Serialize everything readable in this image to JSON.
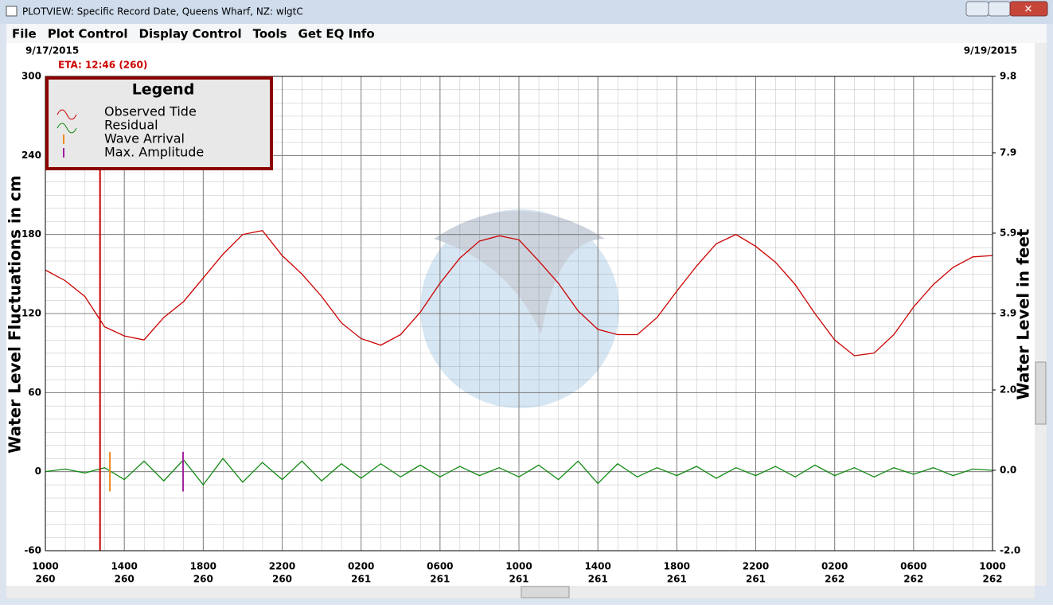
{
  "window": {
    "title": "PLOTVIEW: Specific Record Date, Queens Wharf, NZ: wlgtC",
    "menu": [
      "File",
      "Plot Control",
      "Display Control",
      "Tools",
      "Get EQ Info"
    ]
  },
  "chart_data": {
    "type": "line",
    "start_date_label": "9/17/2015",
    "end_date_label": "9/19/2015",
    "y_label": "Water Level Fluctuations in cm",
    "y2_label": "Water Level in feet",
    "legend_title": "Legend",
    "xlim": [
      0,
      48
    ],
    "xticks": [
      {
        "value": 0,
        "label": "1000"
      },
      {
        "value": 4,
        "label": "1400"
      },
      {
        "value": 8,
        "label": "1800"
      },
      {
        "value": 12,
        "label": "2200"
      },
      {
        "value": 16,
        "label": "0200"
      },
      {
        "value": 20,
        "label": "0600"
      },
      {
        "value": 24,
        "label": "1000"
      },
      {
        "value": 28,
        "label": "1400"
      },
      {
        "value": 32,
        "label": "1800"
      },
      {
        "value": 36,
        "label": "2200"
      },
      {
        "value": 40,
        "label": "0200"
      },
      {
        "value": 44,
        "label": "0600"
      },
      {
        "value": 48,
        "label": "1000"
      }
    ],
    "xtick_sublabels": [
      "260",
      "260",
      "260",
      "260",
      "261",
      "261",
      "261",
      "261",
      "261",
      "261",
      "262",
      "262",
      "262"
    ],
    "ylim": [
      -60,
      300
    ],
    "yticks": [
      300,
      240,
      180,
      120,
      60,
      0,
      -60
    ],
    "y2lim": [
      -2,
      9.8
    ],
    "y2ticks": [
      9.8,
      7.9,
      5.9,
      3.9,
      {
        "value": 2,
        "label": "2.0"
      },
      {
        "value": 0,
        "label": "0.0"
      },
      {
        "value": -2,
        "label": "-2.0"
      }
    ],
    "grid": true,
    "x": [
      0,
      1,
      2,
      3,
      4,
      5,
      6,
      7,
      8,
      9,
      10,
      11,
      12,
      13,
      14,
      15,
      16,
      17,
      18,
      19,
      20,
      21,
      22,
      23,
      24,
      25,
      26,
      27,
      28,
      29,
      30,
      31,
      32,
      33,
      34,
      35,
      36,
      37,
      38,
      39,
      40,
      41,
      42,
      43,
      44,
      45,
      46,
      47,
      48
    ],
    "series": [
      {
        "name": "Observed Tide",
        "color": "#cc0000",
        "values": [
          153,
          145,
          133,
          110,
          103,
          100,
          117,
          129,
          147,
          165,
          180,
          183,
          164,
          150,
          133,
          113,
          101,
          96,
          104,
          121,
          143,
          162,
          175,
          179,
          176,
          160,
          143,
          122,
          108,
          104,
          104,
          117,
          137,
          156,
          173,
          180,
          171,
          159,
          142,
          120,
          100,
          88,
          90,
          104,
          125,
          142,
          155,
          163,
          164
        ]
      },
      {
        "name": "Residual",
        "color": "#108a10",
        "values": [
          0,
          2,
          -1,
          3,
          -6,
          8,
          -7,
          9,
          -10,
          10,
          -8,
          7,
          -6,
          8,
          -7,
          6,
          -5,
          6,
          -4,
          5,
          -4,
          4,
          -3,
          3,
          -4,
          5,
          -6,
          8,
          -9,
          6,
          -4,
          3,
          -3,
          4,
          -5,
          3,
          -3,
          4,
          -4,
          5,
          -3,
          3,
          -4,
          3,
          -2,
          3,
          -3,
          2,
          1
        ]
      }
    ],
    "eta": {
      "label": "ETA: 12:46 (260)",
      "x": 2.77,
      "color": "#cc0000"
    },
    "wave_arrival": {
      "name": "Wave Arrival",
      "x": 3.27,
      "range": [
        -15,
        15
      ],
      "color": "#f08a1e"
    },
    "max_amplitude": {
      "name": "Max. Amplitude",
      "x": 6.98,
      "range": [
        -15,
        15
      ],
      "color": "#a020a0"
    }
  }
}
